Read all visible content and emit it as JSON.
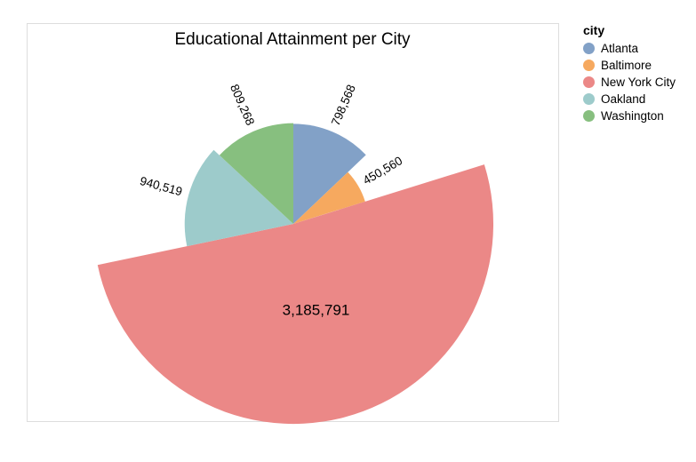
{
  "chart_data": {
    "type": "pie",
    "variant": "radial",
    "title": "Educational Attainment per City",
    "legend_title": "city",
    "legend_position": "right",
    "categories": [
      "Atlanta",
      "Baltimore",
      "New York City",
      "Oakland",
      "Washington"
    ],
    "values": [
      798568,
      450560,
      3185791,
      940519,
      809268
    ],
    "labels": [
      "798,568",
      "450,560",
      "3,185,791",
      "940,519",
      "809,268"
    ],
    "colors": [
      "#82a1c7",
      "#f6a95f",
      "#eb8887",
      "#9dcbcb",
      "#87bf7f"
    ]
  }
}
